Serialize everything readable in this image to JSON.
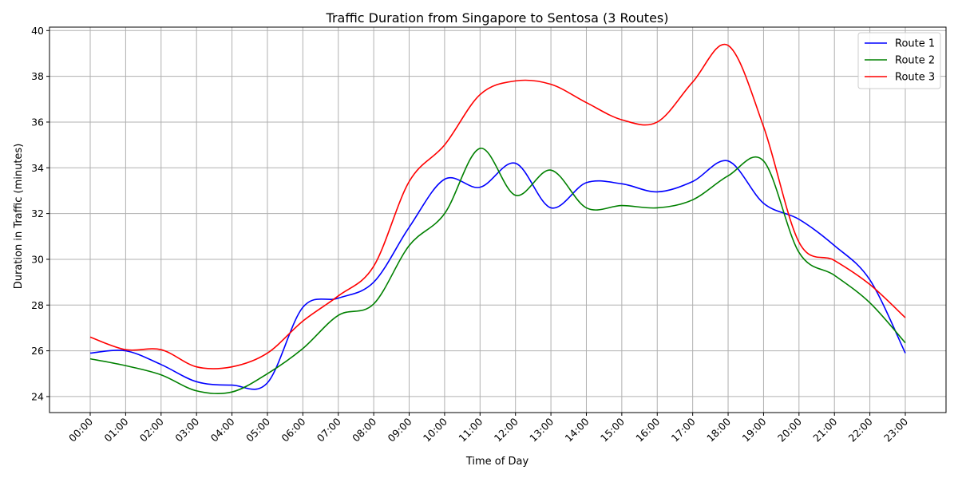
{
  "chart_data": {
    "type": "line",
    "title": "Traffic Duration from Singapore to Sentosa (3 Routes)",
    "xlabel": "Time of Day",
    "ylabel": "Duration in Traffic (minutes)",
    "categories": [
      "00:00",
      "01:00",
      "02:00",
      "03:00",
      "04:00",
      "05:00",
      "06:00",
      "07:00",
      "08:00",
      "09:00",
      "10:00",
      "11:00",
      "12:00",
      "13:00",
      "14:00",
      "15:00",
      "16:00",
      "17:00",
      "18:00",
      "19:00",
      "20:00",
      "21:00",
      "22:00",
      "23:00"
    ],
    "ylim": [
      23.3,
      40.15
    ],
    "yticks": [
      24,
      26,
      28,
      30,
      32,
      34,
      36,
      38,
      40
    ],
    "grid": true,
    "legend_position": "top-right",
    "series": [
      {
        "name": "Route 1",
        "color": "#0000ff",
        "values": [
          25.9,
          26.0,
          25.4,
          24.65,
          24.5,
          24.6,
          27.9,
          28.3,
          29.0,
          31.4,
          33.5,
          33.15,
          34.2,
          32.25,
          33.35,
          33.3,
          32.95,
          33.4,
          34.3,
          32.45,
          31.75,
          30.6,
          29.1,
          25.9
        ]
      },
      {
        "name": "Route 2",
        "color": "#008000",
        "values": [
          25.65,
          25.35,
          24.95,
          24.25,
          24.2,
          25.0,
          26.1,
          27.55,
          28.05,
          30.6,
          32.0,
          34.85,
          32.8,
          33.9,
          32.25,
          32.35,
          32.25,
          32.6,
          33.65,
          34.3,
          30.3,
          29.3,
          28.1,
          26.35
        ]
      },
      {
        "name": "Route 3",
        "color": "#ff0000",
        "values": [
          26.6,
          26.05,
          26.05,
          25.3,
          25.3,
          25.9,
          27.3,
          28.4,
          29.7,
          33.4,
          35.0,
          37.2,
          37.8,
          37.65,
          36.85,
          36.1,
          36.0,
          37.75,
          39.35,
          35.8,
          30.75,
          29.95,
          28.9,
          27.45
        ]
      }
    ]
  }
}
